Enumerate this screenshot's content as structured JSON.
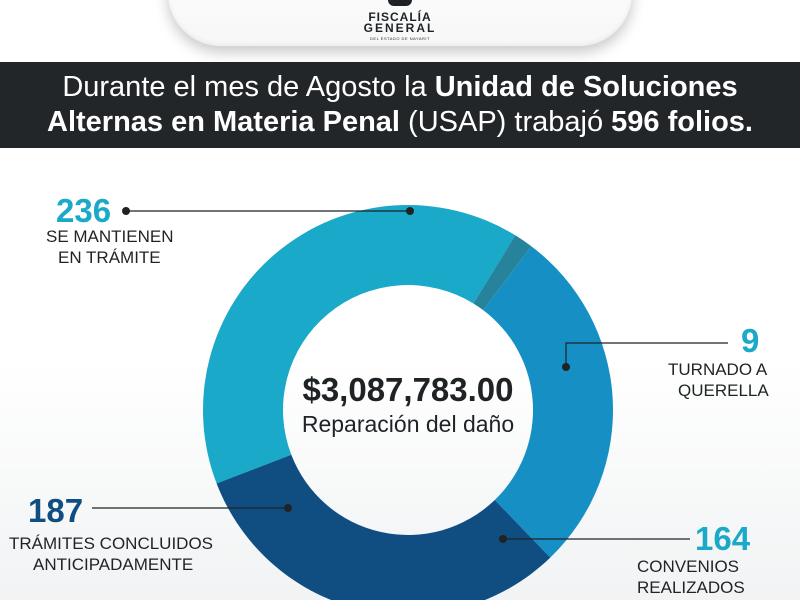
{
  "logo": {
    "line1": "FISCALÍA",
    "line2": "GENERAL",
    "sub": "DEL ESTADO DE NAYARIT"
  },
  "headline": {
    "part1": "Durante el mes de Agosto la ",
    "part2": "Unidad de Soluciones",
    "part3": "Alternas en Materia Penal",
    "part4": " (USAP) trabajó ",
    "part5": "596 folios."
  },
  "chart_data": {
    "type": "pie",
    "total": 596,
    "center_value": "$3,087,783.00",
    "center_label": "Reparación del daño",
    "slices": [
      {
        "value": 236,
        "label_line1": "SE MANTIENEN",
        "label_line2": "EN TRÁMITE",
        "color": "#1aa9c8"
      },
      {
        "value": 9,
        "label_line1": "TURNADO A",
        "label_line2": "QUERELLA",
        "color": "#27829c"
      },
      {
        "value": 164,
        "label_line1": "CONVENIOS",
        "label_line2": "REALIZADOS",
        "color": "#1690c4"
      },
      {
        "value": 187,
        "label_line1": "TRÁMITES CONCLUIDOS",
        "label_line2": "ANTICIPADAMENTE",
        "color": "#104e82"
      }
    ],
    "value_colors": {
      "light": "#1aa9c8",
      "dark": "#104e82"
    }
  }
}
